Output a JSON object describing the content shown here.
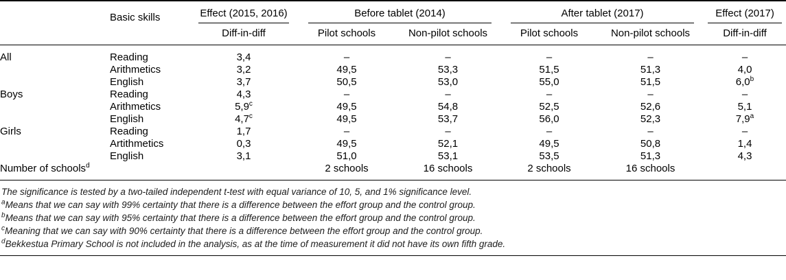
{
  "table": {
    "header": {
      "basic_skills": "Basic skills",
      "effect_2015_2016": "Effect (2015, 2016)",
      "before_tablet": "Before tablet (2014)",
      "after_tablet": "After tablet (2017)",
      "effect_2017": "Effect (2017)",
      "diff_in_diff_1": "Diff-in-diff",
      "pilot_schools_before": "Pilot schools",
      "non_pilot_schools_before": "Non-pilot schools",
      "pilot_schools_after": "Pilot schools",
      "non_pilot_schools_after": "Non-pilot schools",
      "diff_in_diff_2": "Diff-in-diff"
    },
    "rows": [
      {
        "group": "All",
        "group_sup": "",
        "skill": "Reading",
        "values": [
          {
            "t": "3,4",
            "s": ""
          },
          {
            "t": "–",
            "s": ""
          },
          {
            "t": "–",
            "s": ""
          },
          {
            "t": "–",
            "s": ""
          },
          {
            "t": "–",
            "s": ""
          },
          {
            "t": "–",
            "s": ""
          }
        ]
      },
      {
        "group": "",
        "group_sup": "",
        "skill": "Arithmetics",
        "values": [
          {
            "t": "3,2",
            "s": ""
          },
          {
            "t": "49,5",
            "s": ""
          },
          {
            "t": "53,3",
            "s": ""
          },
          {
            "t": "51,5",
            "s": ""
          },
          {
            "t": "51,3",
            "s": ""
          },
          {
            "t": "4,0",
            "s": ""
          }
        ]
      },
      {
        "group": "",
        "group_sup": "",
        "skill": "English",
        "values": [
          {
            "t": "3,7",
            "s": ""
          },
          {
            "t": "50,5",
            "s": ""
          },
          {
            "t": "53,0",
            "s": ""
          },
          {
            "t": "55,0",
            "s": ""
          },
          {
            "t": "51,5",
            "s": ""
          },
          {
            "t": "6,0",
            "s": "b"
          }
        ]
      },
      {
        "group": "Boys",
        "group_sup": "",
        "skill": "Reading",
        "values": [
          {
            "t": "4,3",
            "s": ""
          },
          {
            "t": "–",
            "s": ""
          },
          {
            "t": "–",
            "s": ""
          },
          {
            "t": "–",
            "s": ""
          },
          {
            "t": "–",
            "s": ""
          },
          {
            "t": "–",
            "s": ""
          }
        ]
      },
      {
        "group": "",
        "group_sup": "",
        "skill": "Arithmetics",
        "values": [
          {
            "t": "5,9",
            "s": "c"
          },
          {
            "t": "49,5",
            "s": ""
          },
          {
            "t": "54,8",
            "s": ""
          },
          {
            "t": "52,5",
            "s": ""
          },
          {
            "t": "52,6",
            "s": ""
          },
          {
            "t": "5,1",
            "s": ""
          }
        ]
      },
      {
        "group": "",
        "group_sup": "",
        "skill": "English",
        "values": [
          {
            "t": "4,7",
            "s": "c"
          },
          {
            "t": "49,5",
            "s": ""
          },
          {
            "t": "53,7",
            "s": ""
          },
          {
            "t": "56,0",
            "s": ""
          },
          {
            "t": "52,3",
            "s": ""
          },
          {
            "t": "7,9",
            "s": "a"
          }
        ]
      },
      {
        "group": "Girls",
        "group_sup": "",
        "skill": "Reading",
        "values": [
          {
            "t": "1,7",
            "s": ""
          },
          {
            "t": "–",
            "s": ""
          },
          {
            "t": "–",
            "s": ""
          },
          {
            "t": "–",
            "s": ""
          },
          {
            "t": "–",
            "s": ""
          },
          {
            "t": "–",
            "s": ""
          }
        ]
      },
      {
        "group": "",
        "group_sup": "",
        "skill": "Artithmetics",
        "values": [
          {
            "t": "0,3",
            "s": ""
          },
          {
            "t": "49,5",
            "s": ""
          },
          {
            "t": "52,1",
            "s": ""
          },
          {
            "t": "49,5",
            "s": ""
          },
          {
            "t": "50,8",
            "s": ""
          },
          {
            "t": "1,4",
            "s": ""
          }
        ]
      },
      {
        "group": "",
        "group_sup": "",
        "skill": "English",
        "values": [
          {
            "t": "3,1",
            "s": ""
          },
          {
            "t": "51,0",
            "s": ""
          },
          {
            "t": "53,1",
            "s": ""
          },
          {
            "t": "53,5",
            "s": ""
          },
          {
            "t": "51,3",
            "s": ""
          },
          {
            "t": "4,3",
            "s": ""
          }
        ]
      },
      {
        "group": "Number of schools",
        "group_sup": "d",
        "skill": "",
        "values": [
          {
            "t": "",
            "s": ""
          },
          {
            "t": "2 schools",
            "s": ""
          },
          {
            "t": "16 schools",
            "s": ""
          },
          {
            "t": "2 schools",
            "s": ""
          },
          {
            "t": "16 schools",
            "s": ""
          },
          {
            "t": "",
            "s": ""
          }
        ]
      }
    ]
  },
  "footnotes": [
    {
      "sup": "",
      "text": "The significance is tested by a two-tailed independent t-test with equal variance of 10, 5, and 1% significance level."
    },
    {
      "sup": "a",
      "text": "Means that we can say with 99% certainty that there is a difference between the effort group and the control group."
    },
    {
      "sup": "b",
      "text": "Means that we can say with 95% certainty that there is a difference between the effort group and the control group."
    },
    {
      "sup": "c",
      "text": "Meaning that we can say with 90% certainty that there is a difference between the effort group and the control group."
    },
    {
      "sup": "d",
      "text": "Bekkestua Primary School is not included in the analysis, as at the time of measurement it did not have its own fifth grade."
    }
  ],
  "colors": {
    "rule": "#000000",
    "text": "#000000",
    "footnote_text": "#1c1c1c",
    "background": "#ffffff"
  }
}
